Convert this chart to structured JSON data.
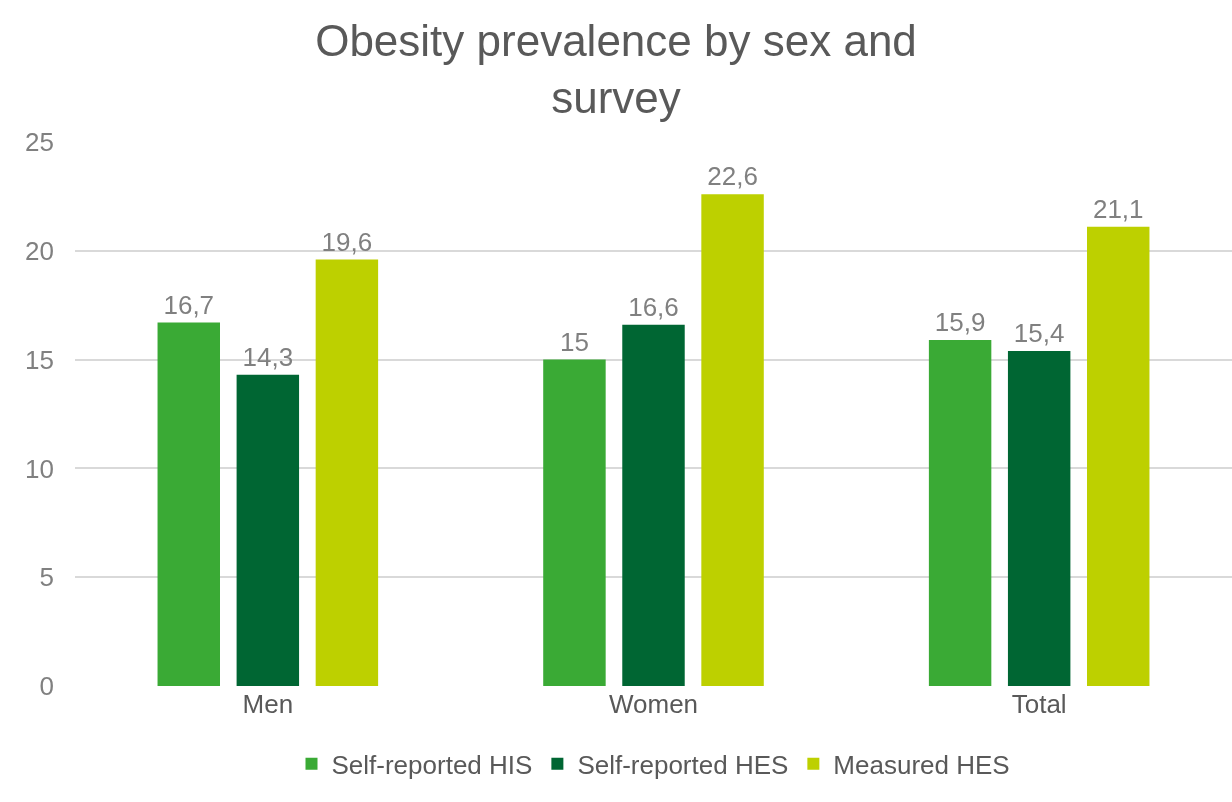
{
  "chart_data": {
    "type": "bar",
    "title": "Obesity prevalence by sex and survey",
    "categories": [
      "Men",
      "Women",
      "Total"
    ],
    "series": [
      {
        "name": "Self-reported HIS",
        "color": "#3aaa35",
        "values": [
          16.7,
          15,
          15.9
        ],
        "value_labels": [
          "16,7",
          "15",
          "15,9"
        ]
      },
      {
        "name": "Self-reported HES",
        "color": "#006633",
        "values": [
          14.3,
          16.6,
          15.4
        ],
        "value_labels": [
          "14,3",
          "16,6",
          "15,4"
        ]
      },
      {
        "name": "Measured HES",
        "color": "#bdd000",
        "values": [
          19.6,
          22.6,
          21.1
        ],
        "value_labels": [
          "19,6",
          "22,6",
          "21,1"
        ]
      }
    ],
    "ylim": [
      0,
      25
    ],
    "yticks": [
      0,
      5,
      10,
      15,
      20,
      25
    ],
    "grid": "y",
    "legend": "bottom"
  }
}
